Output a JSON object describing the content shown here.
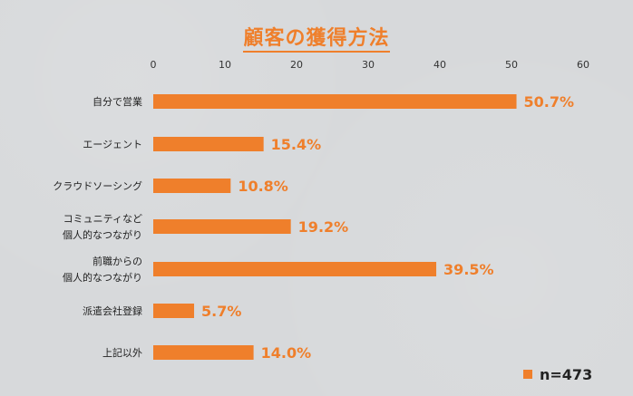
{
  "chart_data": {
    "type": "bar",
    "orientation": "horizontal",
    "title": "顧客の獲得方法",
    "xlim": [
      0,
      60
    ],
    "xticks": [
      0,
      10,
      20,
      30,
      40,
      50,
      60
    ],
    "categories": [
      [
        "自分で営業"
      ],
      [
        "エージェント"
      ],
      [
        "クラウドソーシング"
      ],
      [
        "コミュニティなど",
        "個人的なつながり"
      ],
      [
        "前職からの",
        "個人的なつながり"
      ],
      [
        "派遣会社登録"
      ],
      [
        "上記以外"
      ]
    ],
    "values": [
      50.7,
      15.4,
      10.8,
      19.2,
      39.5,
      5.7,
      14.0
    ],
    "value_labels": [
      "50.7%",
      "15.4%",
      "10.8%",
      "19.2%",
      "39.5%",
      "5.7%",
      "14.0%"
    ],
    "legend": {
      "label": "n=473",
      "placement": "bottom-right"
    },
    "grid": false,
    "colors": {
      "bar": "#ef7f2b",
      "title": "#ef7f2b",
      "value_label": "#ef7f2b"
    }
  }
}
